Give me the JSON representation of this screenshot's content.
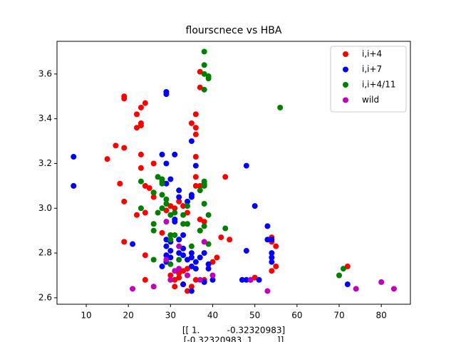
{
  "chart_data": {
    "type": "scatter",
    "title": "flourscnece vs HBA",
    "xlabel": [
      "[[ 1.          -0.32320983]",
      "[-0.32320983  1.        ]]"
    ],
    "xlim": [
      3.07,
      86.9
    ],
    "ylim": [
      2.571,
      3.746
    ],
    "xticks": [
      10,
      20,
      30,
      40,
      50,
      60,
      70,
      80
    ],
    "yticks": [
      2.6,
      2.8,
      {
        "value": 3,
        "label": "3.0"
      },
      3.2,
      3.4,
      3.6
    ],
    "legend": "upper right",
    "series": [
      {
        "name": "i,i+4",
        "color": "#ff0000",
        "x": [
          19,
          19,
          24,
          23,
          22,
          23,
          22,
          23,
          17,
          19,
          15,
          23,
          23,
          26,
          18,
          24,
          25,
          26,
          26,
          19,
          22,
          24,
          29,
          30,
          32,
          31,
          33,
          34,
          19,
          24,
          28,
          30,
          32,
          36,
          36,
          35,
          36,
          37,
          37,
          36,
          36,
          36,
          37,
          43,
          37,
          38,
          37,
          42,
          44,
          41,
          40,
          24,
          30,
          32,
          33,
          34,
          31,
          33,
          34,
          35,
          36,
          38,
          50,
          54,
          54,
          55,
          55,
          54,
          72,
          31,
          32,
          29
        ],
        "y": [
          3.49,
          3.5,
          3.47,
          3.45,
          3.42,
          3.38,
          3.36,
          3.37,
          3.28,
          3.27,
          3.22,
          3.24,
          3.18,
          3.2,
          3.11,
          3.1,
          3.09,
          3.07,
          3.05,
          3.03,
          2.97,
          2.98,
          2.99,
          3.01,
          3.03,
          3.0,
          3.01,
          2.98,
          2.85,
          2.79,
          2.89,
          2.88,
          2.86,
          3.36,
          3.33,
          3.38,
          3.42,
          3.61,
          3.54,
          3.23,
          3.14,
          3.1,
          3.1,
          3.14,
          2.95,
          2.94,
          2.9,
          2.87,
          2.86,
          2.78,
          2.76,
          2.68,
          2.7,
          2.71,
          2.72,
          2.73,
          2.65,
          2.66,
          2.63,
          2.65,
          2.68,
          2.68,
          2.69,
          2.87,
          2.85,
          2.83,
          2.74,
          2.72,
          2.74,
          2.68,
          2.69,
          2.79
        ]
      },
      {
        "name": "i,i+7",
        "color": "#0000ff",
        "x": [
          7,
          7,
          21,
          29,
          29,
          28,
          31,
          29,
          30,
          29,
          32,
          32,
          35,
          35,
          34,
          36,
          35,
          48,
          50,
          31,
          31,
          33,
          32,
          29,
          30,
          29,
          30,
          29,
          30,
          32,
          33,
          33,
          34,
          35,
          35,
          36,
          35,
          36,
          37,
          38,
          39,
          39,
          40,
          38,
          35,
          33,
          47,
          48,
          49,
          51,
          48,
          53,
          53,
          54,
          54,
          54,
          54,
          72,
          29,
          28
        ],
        "y": [
          3.23,
          3.1,
          2.84,
          3.52,
          3.51,
          3.24,
          3.24,
          3.2,
          3.13,
          3.11,
          3.08,
          3.05,
          3.05,
          3.06,
          3.03,
          3.19,
          3.3,
          3.19,
          3.01,
          2.95,
          2.94,
          2.88,
          2.86,
          2.86,
          2.85,
          2.83,
          2.81,
          2.79,
          2.78,
          2.8,
          2.82,
          2.79,
          2.77,
          2.8,
          2.78,
          2.76,
          2.74,
          2.73,
          2.78,
          2.8,
          2.75,
          2.73,
          2.68,
          2.67,
          2.63,
          2.66,
          2.68,
          2.68,
          2.68,
          2.68,
          2.81,
          2.92,
          2.86,
          2.86,
          2.8,
          2.78,
          2.76,
          2.66,
          2.76,
          2.74
        ]
      },
      {
        "name": "i,i+4/11",
        "color": "#008000",
        "x": [
          38,
          38,
          38,
          39,
          39,
          38,
          56,
          27,
          28,
          28,
          28,
          23,
          26,
          28,
          29,
          29,
          23,
          27,
          28,
          30,
          31,
          33,
          33,
          34,
          34,
          38,
          38,
          38,
          37,
          38,
          39,
          38,
          37,
          26,
          26,
          30,
          30,
          31,
          35,
          39,
          43,
          26,
          30,
          32,
          70,
          71
        ],
        "y": [
          3.7,
          3.64,
          3.6,
          3.59,
          3.58,
          3.53,
          3.45,
          3.14,
          3.13,
          3.11,
          3.12,
          3.12,
          3.07,
          3.06,
          3.04,
          3.02,
          3.0,
          2.98,
          3.0,
          2.97,
          2.98,
          2.97,
          2.93,
          2.93,
          3.01,
          3.12,
          3.11,
          3.1,
          3.08,
          3.02,
          2.97,
          2.92,
          2.9,
          2.93,
          2.9,
          2.88,
          2.86,
          2.88,
          2.83,
          2.84,
          2.91,
          2.77,
          2.75,
          2.77,
          2.7,
          2.73
        ]
      },
      {
        "name": "wild",
        "color": "#bf00bf",
        "x": [
          21,
          26,
          29,
          29,
          30,
          31,
          32,
          32,
          34,
          38,
          40,
          49,
          53,
          74,
          80,
          83,
          37
        ],
        "y": [
          2.64,
          2.65,
          2.94,
          2.77,
          2.68,
          2.72,
          2.73,
          2.83,
          2.7,
          2.85,
          2.7,
          2.68,
          2.63,
          2.64,
          2.67,
          2.64,
          2.68
        ]
      }
    ]
  }
}
